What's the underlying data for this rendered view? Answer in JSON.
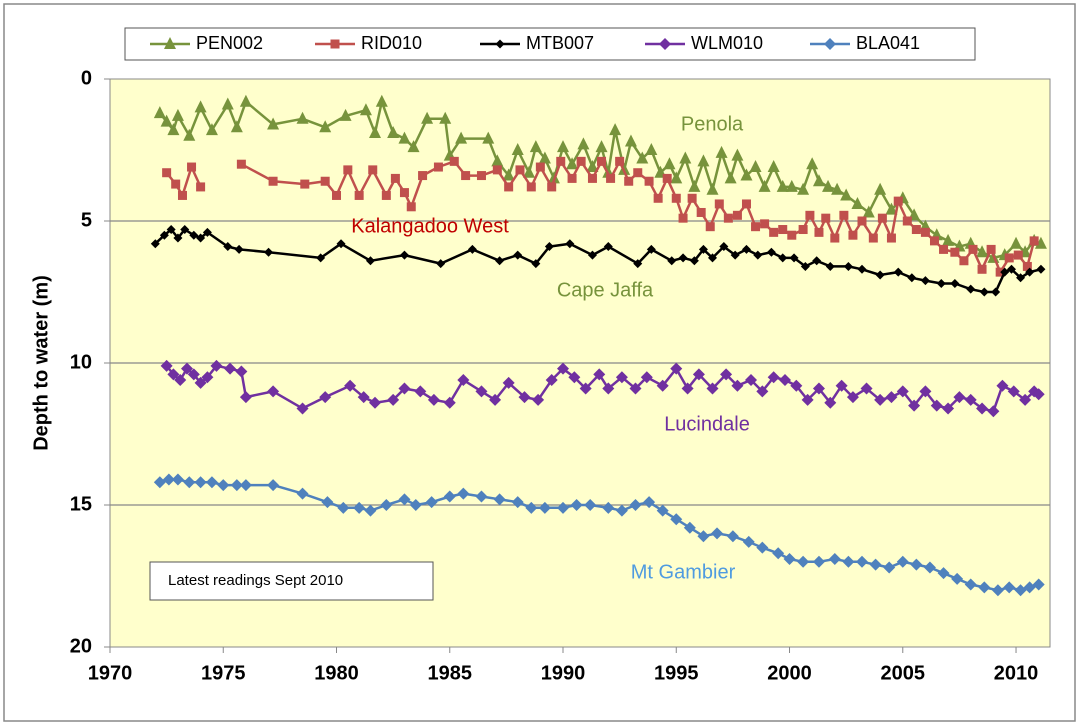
{
  "chart_data": {
    "type": "line",
    "y_label": "Depth to water  (m)",
    "xlim": [
      1970,
      2011.5
    ],
    "xticks": [
      1970,
      1975,
      1980,
      1985,
      1990,
      1995,
      2000,
      2005,
      2010
    ],
    "ylim": [
      0,
      20
    ],
    "yticks": [
      0,
      5,
      10,
      15,
      20
    ],
    "y_inverted": true,
    "grid": true,
    "legend_position": "top",
    "annotations": [
      {
        "text": "Penola",
        "color": "#77933c"
      },
      {
        "text": "Kalangadoo West",
        "color": "#c00000"
      },
      {
        "text": "Cape Jaffa",
        "color": "#77933c"
      },
      {
        "text": "Lucindale",
        "color": "#7030a0"
      },
      {
        "text": "Mt Gambier",
        "color": "#4f9be0"
      },
      {
        "text": "Latest readings  Sept 2010",
        "color": "#000000"
      }
    ],
    "series": [
      {
        "name": "PEN002",
        "color": "#77933c",
        "marker": "triangle",
        "x": [
          1972.2,
          1972.5,
          1972.8,
          1973.0,
          1973.5,
          1974.0,
          1974.5,
          1975.2,
          1975.6,
          1976.0,
          1977.2,
          1978.5,
          1979.5,
          1980.4,
          1981.3,
          1981.7,
          1982.0,
          1982.5,
          1983.0,
          1983.4,
          1984.0,
          1984.8,
          1985.0,
          1985.5,
          1986.7,
          1987.1,
          1987.6,
          1988.0,
          1988.5,
          1988.8,
          1989.2,
          1989.6,
          1990.0,
          1990.4,
          1990.9,
          1991.3,
          1991.7,
          1992.0,
          1992.3,
          1992.7,
          1993.0,
          1993.5,
          1993.9,
          1994.3,
          1994.7,
          1995.0,
          1995.4,
          1995.8,
          1996.2,
          1996.6,
          1997.0,
          1997.4,
          1997.7,
          1998.1,
          1998.5,
          1998.9,
          1999.3,
          1999.7,
          2000.1,
          2000.6,
          2001.0,
          2001.3,
          2001.7,
          2002.1,
          2002.5,
          2003.0,
          2003.5,
          2004.0,
          2004.5,
          2005.0,
          2005.5,
          2006.0,
          2006.5,
          2007.0,
          2007.5,
          2008.0,
          2008.5,
          2009.0,
          2009.5,
          2010.0,
          2010.4,
          2010.8,
          2011.1
        ],
        "values": [
          1.2,
          1.5,
          1.8,
          1.3,
          2.0,
          1.0,
          1.8,
          0.9,
          1.7,
          0.8,
          1.6,
          1.4,
          1.7,
          1.3,
          1.1,
          1.9,
          0.8,
          1.9,
          2.1,
          2.4,
          1.4,
          1.4,
          2.7,
          2.1,
          2.1,
          2.9,
          3.4,
          2.5,
          3.3,
          2.4,
          2.8,
          3.5,
          2.4,
          3.0,
          2.3,
          3.1,
          2.4,
          3.3,
          1.8,
          3.2,
          2.2,
          2.8,
          2.5,
          3.3,
          3.0,
          3.5,
          2.8,
          3.8,
          2.9,
          3.9,
          2.6,
          3.5,
          2.7,
          3.4,
          3.1,
          3.8,
          3.1,
          3.8,
          3.8,
          3.9,
          3.0,
          3.6,
          3.8,
          3.9,
          4.1,
          4.4,
          4.7,
          3.9,
          4.6,
          4.2,
          4.8,
          5.2,
          5.5,
          5.7,
          5.9,
          5.8,
          6.1,
          6.3,
          6.2,
          5.8,
          6.1,
          5.7,
          5.8
        ]
      },
      {
        "name": "RID010",
        "color": "#c0504d",
        "marker": "square",
        "x": [
          1972.5,
          1972.9,
          1973.2,
          1973.6,
          1974.0,
          null,
          1975.8,
          1977.2,
          1978.6,
          1979.5,
          1980.0,
          1980.5,
          1981.0,
          1981.6,
          1982.2,
          1982.6,
          1983.0,
          1983.3,
          1983.8,
          1984.5,
          1985.2,
          1985.7,
          1986.4,
          1987.1,
          1987.6,
          1988.1,
          1988.6,
          1989.0,
          1989.5,
          1989.9,
          1990.4,
          1990.8,
          1991.3,
          1991.7,
          1992.1,
          1992.5,
          1992.9,
          1993.3,
          1993.8,
          1994.2,
          1994.6,
          1995.0,
          1995.3,
          1995.7,
          1996.1,
          1996.5,
          1996.9,
          1997.3,
          1997.7,
          1998.1,
          1998.5,
          1998.9,
          1999.3,
          1999.7,
          2000.1,
          2000.6,
          2000.9,
          2001.3,
          2001.6,
          2002.0,
          2002.4,
          2002.8,
          2003.2,
          2003.7,
          2004.1,
          2004.5,
          2004.8,
          2005.2,
          2005.6,
          2006.0,
          2006.4,
          2006.8,
          2007.3,
          2007.7,
          2008.1,
          2008.5,
          2008.9,
          2009.3,
          2009.7,
          2010.1,
          2010.5,
          2010.8
        ],
        "values": [
          3.3,
          3.7,
          4.1,
          3.1,
          3.8,
          null,
          3.0,
          3.6,
          3.7,
          3.6,
          4.1,
          3.2,
          4.1,
          3.2,
          4.1,
          3.5,
          4.0,
          4.5,
          3.4,
          3.1,
          2.9,
          3.4,
          3.4,
          3.2,
          3.8,
          3.2,
          3.8,
          3.1,
          3.8,
          2.9,
          3.5,
          2.9,
          3.5,
          2.9,
          3.5,
          2.9,
          3.6,
          3.3,
          3.6,
          4.2,
          3.5,
          4.2,
          4.9,
          4.2,
          4.7,
          5.2,
          4.4,
          4.9,
          4.8,
          4.4,
          5.2,
          5.1,
          5.4,
          5.3,
          5.5,
          5.3,
          4.8,
          5.4,
          4.9,
          5.6,
          4.8,
          5.5,
          5.0,
          5.6,
          4.9,
          5.6,
          4.3,
          5.0,
          5.3,
          5.4,
          5.7,
          6.0,
          6.1,
          6.4,
          6.0,
          6.7,
          6.0,
          6.8,
          6.3,
          6.2,
          6.6,
          5.7
        ]
      },
      {
        "name": "MTB007",
        "color": "#000000",
        "marker": "diamond",
        "x": [
          1972.0,
          1972.4,
          1972.7,
          1973.0,
          1973.3,
          1973.7,
          1974.0,
          1974.3,
          1975.2,
          1975.7,
          1977.0,
          1979.3,
          1980.2,
          1981.5,
          1983.0,
          1984.6,
          1986.0,
          1987.2,
          1988.0,
          1988.8,
          1989.4,
          1990.3,
          1991.3,
          1992.0,
          1993.3,
          1993.9,
          1994.8,
          1995.3,
          1995.8,
          1996.2,
          1996.6,
          1997.1,
          1997.6,
          1998.1,
          1998.6,
          1999.2,
          1999.7,
          2000.2,
          2000.7,
          2001.2,
          2001.8,
          2002.6,
          2003.2,
          2004.0,
          2004.8,
          2005.4,
          2006.0,
          2006.7,
          2007.3,
          2008.0,
          2008.6,
          2009.1,
          2009.5,
          2009.8,
          2010.2,
          2010.6,
          2011.1
        ],
        "values": [
          5.8,
          5.5,
          5.3,
          5.6,
          5.3,
          5.5,
          5.6,
          5.4,
          5.9,
          6.0,
          6.1,
          6.3,
          5.8,
          6.4,
          6.2,
          6.5,
          6.0,
          6.4,
          6.2,
          6.5,
          5.9,
          5.8,
          6.2,
          5.9,
          6.5,
          6.0,
          6.4,
          6.3,
          6.4,
          6.0,
          6.3,
          5.9,
          6.2,
          6.0,
          6.2,
          6.1,
          6.3,
          6.3,
          6.6,
          6.4,
          6.6,
          6.6,
          6.7,
          6.9,
          6.8,
          7.0,
          7.1,
          7.2,
          7.2,
          7.4,
          7.5,
          7.5,
          6.8,
          6.7,
          7.0,
          6.8,
          6.7
        ]
      },
      {
        "name": "WLM010",
        "color": "#7030a0",
        "marker": "diamond",
        "x": [
          1972.5,
          1972.8,
          1973.1,
          1973.4,
          1973.7,
          1974.0,
          1974.3,
          1974.7,
          1975.3,
          1975.8,
          1976.0,
          1977.2,
          1978.5,
          1979.5,
          1980.6,
          1981.2,
          1981.7,
          1982.5,
          1983.0,
          1983.7,
          1984.3,
          1985.0,
          1985.6,
          1986.4,
          1987.0,
          1987.6,
          1988.3,
          1988.9,
          1989.5,
          1990.0,
          1990.5,
          1991.0,
          1991.6,
          1992.0,
          1992.6,
          1993.2,
          1993.7,
          1994.4,
          1995.0,
          1995.5,
          1996.0,
          1996.6,
          1997.2,
          1997.7,
          1998.3,
          1998.8,
          1999.3,
          1999.8,
          2000.3,
          2000.8,
          2001.3,
          2001.8,
          2002.3,
          2002.8,
          2003.4,
          2004.0,
          2004.5,
          2005.0,
          2005.5,
          2006.0,
          2006.5,
          2007.0,
          2007.5,
          2008.0,
          2008.5,
          2009.0,
          2009.4,
          2009.9,
          2010.4,
          2010.8,
          2011.0
        ],
        "values": [
          10.1,
          10.4,
          10.6,
          10.2,
          10.4,
          10.7,
          10.5,
          10.1,
          10.2,
          10.3,
          11.2,
          11.0,
          11.6,
          11.2,
          10.8,
          11.2,
          11.4,
          11.3,
          10.9,
          11.0,
          11.3,
          11.4,
          10.6,
          11.0,
          11.3,
          10.7,
          11.2,
          11.3,
          10.6,
          10.2,
          10.5,
          10.9,
          10.4,
          10.9,
          10.5,
          10.9,
          10.5,
          10.8,
          10.2,
          10.9,
          10.4,
          10.9,
          10.4,
          10.8,
          10.6,
          11.0,
          10.5,
          10.6,
          10.8,
          11.3,
          10.9,
          11.4,
          10.8,
          11.2,
          10.9,
          11.3,
          11.2,
          11.0,
          11.5,
          11.0,
          11.5,
          11.6,
          11.2,
          11.3,
          11.6,
          11.7,
          10.8,
          11.0,
          11.3,
          11.0,
          11.1
        ]
      },
      {
        "name": "BLA041",
        "color": "#4f81bd",
        "marker": "diamond",
        "x": [
          1972.2,
          1972.6,
          1973.0,
          1973.5,
          1974.0,
          1974.5,
          1975.0,
          1975.6,
          1976.0,
          1977.2,
          1978.5,
          1979.6,
          1980.3,
          1981.0,
          1981.5,
          1982.2,
          1983.0,
          1983.5,
          1984.2,
          1985.0,
          1985.6,
          1986.4,
          1987.2,
          1988.0,
          1988.6,
          1989.2,
          1990.0,
          1990.6,
          1991.2,
          1992.0,
          1992.6,
          1993.2,
          1993.8,
          1994.4,
          1995.0,
          1995.6,
          1996.2,
          1996.8,
          1997.5,
          1998.2,
          1998.8,
          1999.5,
          2000.0,
          2000.6,
          2001.3,
          2002.0,
          2002.6,
          2003.2,
          2003.8,
          2004.4,
          2005.0,
          2005.6,
          2006.2,
          2006.8,
          2007.4,
          2008.0,
          2008.6,
          2009.2,
          2009.7,
          2010.2,
          2010.6,
          2011.0
        ],
        "values": [
          14.2,
          14.1,
          14.1,
          14.2,
          14.2,
          14.2,
          14.3,
          14.3,
          14.3,
          14.3,
          14.6,
          14.9,
          15.1,
          15.1,
          15.2,
          15.0,
          14.8,
          15.0,
          14.9,
          14.7,
          14.6,
          14.7,
          14.8,
          14.9,
          15.1,
          15.1,
          15.1,
          15.0,
          15.0,
          15.1,
          15.2,
          15.0,
          14.9,
          15.2,
          15.5,
          15.8,
          16.1,
          16.0,
          16.1,
          16.3,
          16.5,
          16.7,
          16.9,
          17.0,
          17.0,
          16.9,
          17.0,
          17.0,
          17.1,
          17.2,
          17.0,
          17.1,
          17.2,
          17.4,
          17.6,
          17.8,
          17.9,
          18.0,
          17.9,
          18.0,
          17.9,
          17.8
        ]
      }
    ]
  }
}
